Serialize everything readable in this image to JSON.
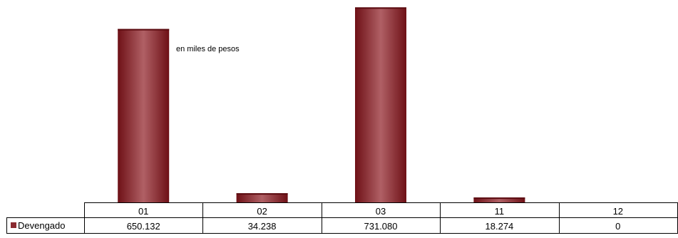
{
  "chart_data": {
    "type": "bar",
    "categories": [
      "01",
      "02",
      "03",
      "11",
      "12"
    ],
    "series": [
      {
        "name": "Devengado",
        "values": [
          650132,
          34238,
          731080,
          18274,
          0
        ],
        "labels": [
          "650.132",
          "34.238",
          "731.080",
          "18.274",
          "0"
        ]
      }
    ],
    "annotation": "en miles de pesos",
    "ylim": [
      0,
      740000
    ],
    "grid": false,
    "legend": "data-table-left",
    "colors": {
      "bar_dark": "#6e1016",
      "bar_light": "#b06065",
      "border": "#000000"
    }
  }
}
